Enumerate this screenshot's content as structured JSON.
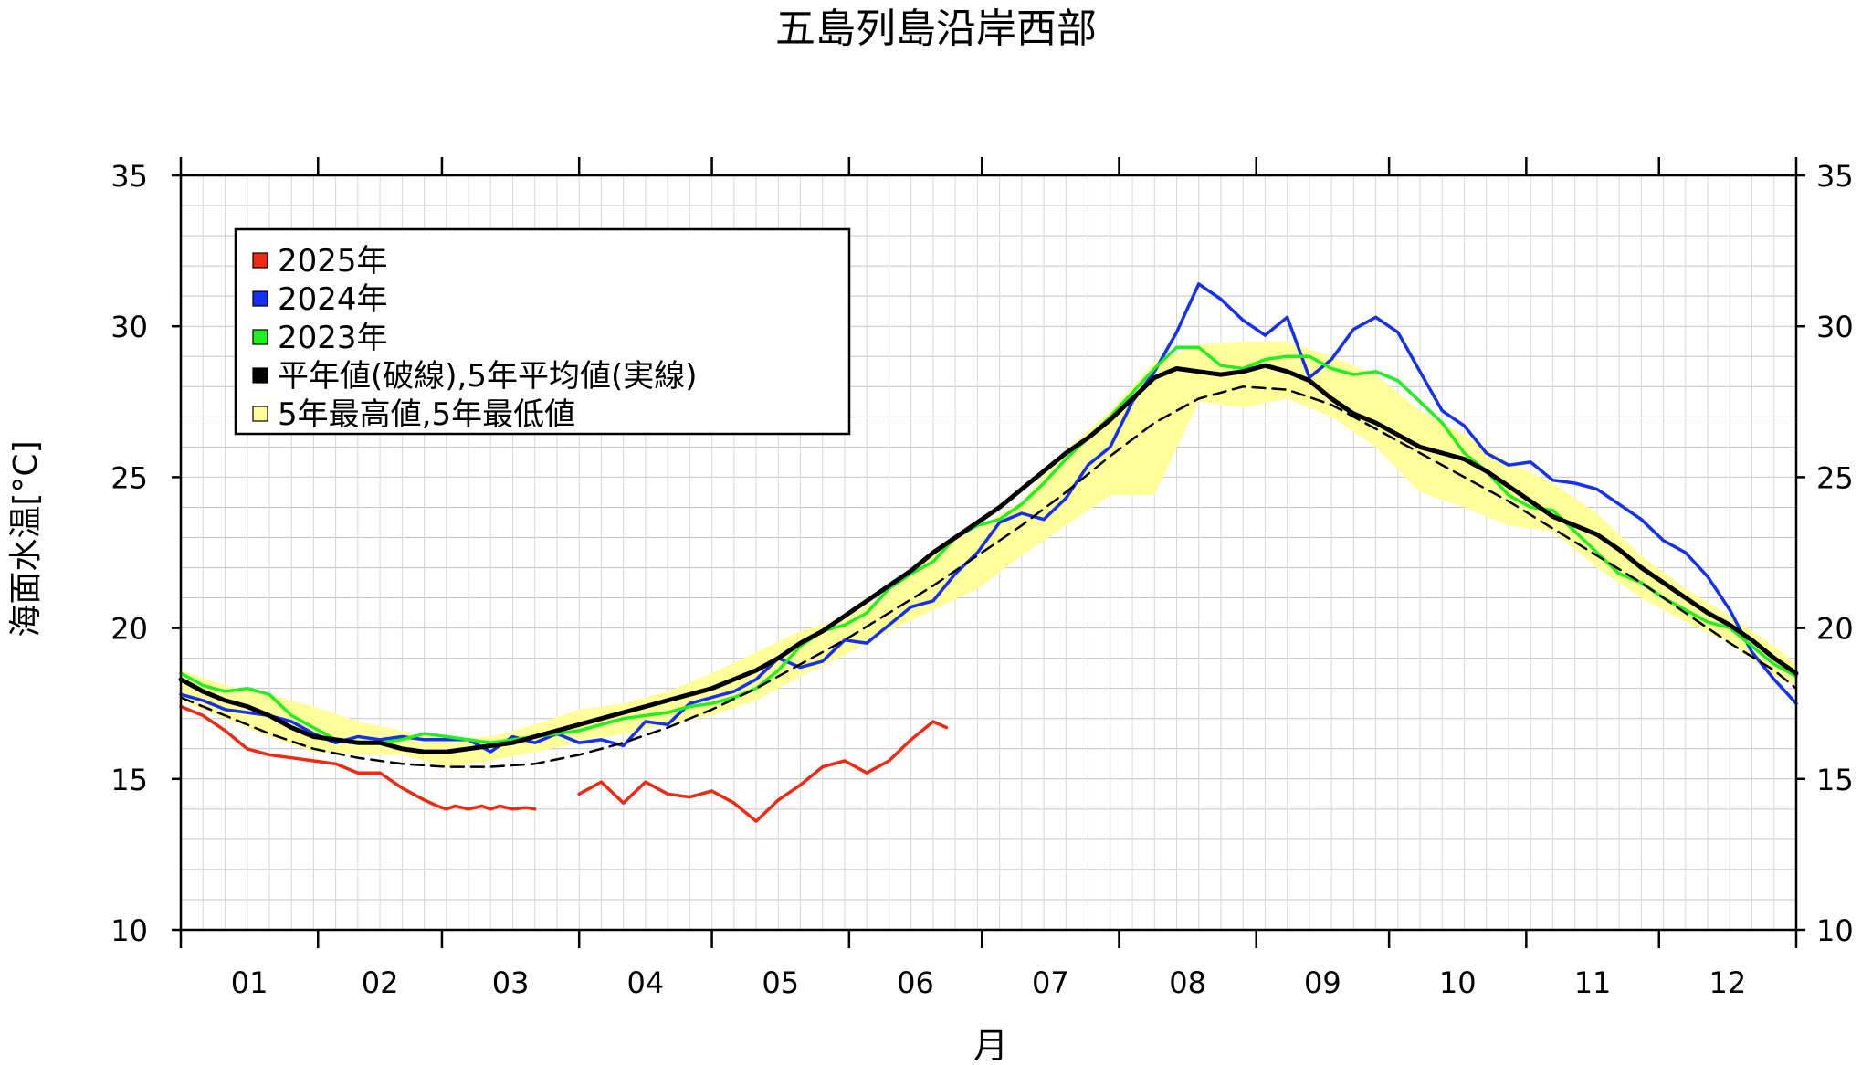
{
  "title": "五島列島沿岸西部",
  "chart_data": {
    "type": "line",
    "title": "五島列島沿岸西部",
    "xlabel": "月",
    "ylabel": "海面水温[°C]",
    "xlim": [
      0,
      365
    ],
    "ylim": [
      10,
      35
    ],
    "grid": true,
    "legend_position": "top-left",
    "x_tick_labels": [
      "01",
      "02",
      "03",
      "04",
      "05",
      "06",
      "07",
      "08",
      "09",
      "10",
      "11",
      "12"
    ],
    "y_ticks": [
      10,
      15,
      20,
      25,
      30,
      35
    ],
    "y_tick_labels": [
      "10",
      "15",
      "20",
      "25",
      "30",
      "35"
    ],
    "legend": [
      {
        "label": "2025年",
        "color": "#ee2a12",
        "swatch": "red-swatch"
      },
      {
        "label": "2024年",
        "color": "#1530ee",
        "swatch": "blue-swatch"
      },
      {
        "label": "2023年",
        "color": "#22ee22",
        "swatch": "green-swatch"
      },
      {
        "label": "平年値(破線),5年平均値(実線)",
        "color": "#000000",
        "swatch": "black-swatch"
      },
      {
        "label": "5年最高値,5年最低値",
        "color": "#ffff99",
        "swatch": "yellow-swatch"
      }
    ],
    "series": [
      {
        "name": "2025年",
        "color": "#ee2a12",
        "style": "solid",
        "x": [
          0,
          5,
          10,
          15,
          20,
          25,
          30,
          35,
          40,
          45,
          50,
          55,
          58,
          60,
          62,
          65,
          68,
          70,
          72,
          75,
          78,
          80,
          85,
          90,
          95,
          100,
          105,
          110,
          115,
          120,
          125,
          130,
          135,
          140,
          145,
          150,
          155,
          160,
          165,
          170,
          173
        ],
        "y": [
          17.4,
          17.1,
          16.6,
          16.0,
          15.8,
          15.7,
          15.6,
          15.5,
          15.2,
          15.2,
          14.7,
          14.3,
          14.1,
          14.0,
          14.1,
          14.0,
          14.1,
          14.0,
          14.1,
          14.0,
          14.05,
          14.0,
          null,
          14.5,
          14.9,
          14.2,
          14.9,
          14.5,
          14.4,
          14.6,
          14.2,
          13.6,
          14.3,
          14.8,
          15.4,
          15.6,
          15.2,
          15.6,
          16.3,
          16.9,
          16.7
        ]
      },
      {
        "name": "2024年",
        "color": "#1530ee",
        "style": "solid",
        "x": [
          0,
          5,
          10,
          15,
          20,
          25,
          30,
          35,
          40,
          45,
          50,
          55,
          60,
          65,
          70,
          75,
          80,
          85,
          90,
          95,
          100,
          105,
          110,
          115,
          120,
          125,
          130,
          135,
          140,
          145,
          150,
          155,
          160,
          165,
          170,
          175,
          180,
          185,
          190,
          195,
          200,
          205,
          210,
          215,
          220,
          225,
          230,
          235,
          240,
          245,
          250,
          255,
          260,
          265,
          270,
          275,
          280,
          285,
          290,
          295,
          300,
          305,
          310,
          315,
          320,
          325,
          330,
          335,
          340,
          345,
          350,
          355,
          360,
          365
        ],
        "y": [
          17.8,
          17.6,
          17.3,
          17.2,
          17.1,
          16.9,
          16.5,
          16.2,
          16.4,
          16.3,
          16.4,
          16.3,
          16.3,
          16.3,
          15.9,
          16.4,
          16.2,
          16.5,
          16.2,
          16.3,
          16.1,
          16.9,
          16.8,
          17.5,
          17.7,
          17.9,
          18.3,
          19.0,
          18.7,
          18.9,
          19.6,
          19.5,
          20.1,
          20.7,
          20.9,
          21.8,
          22.5,
          23.5,
          23.8,
          23.6,
          24.3,
          25.4,
          26.0,
          27.5,
          28.5,
          29.8,
          31.4,
          30.9,
          30.2,
          29.7,
          30.3,
          28.3,
          28.9,
          29.9,
          30.3,
          29.8,
          28.5,
          27.2,
          26.7,
          25.8,
          25.4,
          25.5,
          24.9,
          24.8,
          24.6,
          24.1,
          23.6,
          22.9,
          22.5,
          21.7,
          20.6,
          19.2,
          18.3,
          17.5
        ]
      },
      {
        "name": "2023年",
        "color": "#22ee22",
        "style": "solid",
        "x": [
          0,
          5,
          10,
          15,
          20,
          25,
          30,
          35,
          40,
          45,
          50,
          55,
          60,
          65,
          70,
          75,
          80,
          85,
          90,
          95,
          100,
          105,
          110,
          115,
          120,
          125,
          130,
          135,
          140,
          145,
          150,
          155,
          160,
          165,
          170,
          175,
          180,
          185,
          190,
          195,
          200,
          205,
          210,
          215,
          220,
          225,
          230,
          235,
          240,
          245,
          250,
          255,
          260,
          265,
          270,
          275,
          280,
          285,
          290,
          295,
          300,
          305,
          310,
          315,
          320,
          325,
          330,
          335,
          340,
          345,
          350,
          355,
          360,
          365
        ],
        "y": [
          18.5,
          18.1,
          17.9,
          18.0,
          17.8,
          17.1,
          16.7,
          16.3,
          16.2,
          16.2,
          16.3,
          16.5,
          16.4,
          16.3,
          16.2,
          16.3,
          16.4,
          16.5,
          16.6,
          16.8,
          17.0,
          17.1,
          17.2,
          17.4,
          17.5,
          17.7,
          18.0,
          18.6,
          19.4,
          19.9,
          20.1,
          20.5,
          21.3,
          21.8,
          22.2,
          23.0,
          23.4,
          23.6,
          24.1,
          24.8,
          25.6,
          26.3,
          27.0,
          27.8,
          28.6,
          29.3,
          29.3,
          28.7,
          28.6,
          28.9,
          29.0,
          29.0,
          28.6,
          28.4,
          28.5,
          28.2,
          27.5,
          26.8,
          25.8,
          25.2,
          24.4,
          24.0,
          23.9,
          23.2,
          22.5,
          21.8,
          21.5,
          21.0,
          20.6,
          20.2,
          20.0,
          19.4,
          18.8,
          18.4
        ]
      },
      {
        "name": "5年平均値",
        "color": "#000000",
        "style": "solid",
        "x": [
          0,
          5,
          10,
          15,
          20,
          25,
          30,
          35,
          40,
          45,
          50,
          55,
          60,
          65,
          70,
          75,
          80,
          85,
          90,
          95,
          100,
          105,
          110,
          115,
          120,
          125,
          130,
          135,
          140,
          145,
          150,
          155,
          160,
          165,
          170,
          175,
          180,
          185,
          190,
          195,
          200,
          205,
          210,
          215,
          220,
          225,
          230,
          235,
          240,
          245,
          250,
          255,
          260,
          265,
          270,
          275,
          280,
          285,
          290,
          295,
          300,
          305,
          310,
          315,
          320,
          325,
          330,
          335,
          340,
          345,
          350,
          355,
          360,
          365
        ],
        "y": [
          18.3,
          17.9,
          17.6,
          17.4,
          17.1,
          16.7,
          16.4,
          16.3,
          16.2,
          16.2,
          16.0,
          15.9,
          15.9,
          16.0,
          16.1,
          16.2,
          16.4,
          16.6,
          16.8,
          17.0,
          17.2,
          17.4,
          17.6,
          17.8,
          18.0,
          18.3,
          18.6,
          19.0,
          19.5,
          19.9,
          20.4,
          20.9,
          21.4,
          21.9,
          22.5,
          23.0,
          23.5,
          24.0,
          24.6,
          25.2,
          25.8,
          26.3,
          26.9,
          27.6,
          28.3,
          28.6,
          28.5,
          28.4,
          28.5,
          28.7,
          28.5,
          28.2,
          27.6,
          27.1,
          26.8,
          26.4,
          26.0,
          25.8,
          25.6,
          25.2,
          24.7,
          24.2,
          23.7,
          23.4,
          23.1,
          22.6,
          22.0,
          21.5,
          21.0,
          20.5,
          20.1,
          19.6,
          19.0,
          18.5
        ]
      },
      {
        "name": "平年値",
        "color": "#000000",
        "style": "dashed",
        "x": [
          0,
          10,
          20,
          30,
          40,
          50,
          60,
          70,
          80,
          90,
          100,
          110,
          120,
          130,
          140,
          150,
          160,
          170,
          180,
          190,
          200,
          210,
          220,
          230,
          240,
          250,
          260,
          270,
          280,
          290,
          300,
          310,
          320,
          330,
          340,
          350,
          360,
          365
        ],
        "y": [
          17.7,
          17.1,
          16.5,
          16.0,
          15.7,
          15.5,
          15.4,
          15.4,
          15.5,
          15.8,
          16.2,
          16.7,
          17.3,
          18.0,
          18.8,
          19.6,
          20.5,
          21.4,
          22.4,
          23.4,
          24.5,
          25.7,
          26.8,
          27.6,
          28.0,
          27.9,
          27.4,
          26.6,
          25.8,
          25.0,
          24.2,
          23.3,
          22.4,
          21.5,
          20.5,
          19.5,
          18.6,
          18.0
        ]
      }
    ],
    "band": {
      "name": "5年最高値,5年最低値",
      "color": "#ffff99",
      "x": [
        0,
        10,
        20,
        30,
        40,
        50,
        60,
        70,
        80,
        90,
        100,
        110,
        120,
        130,
        140,
        150,
        160,
        170,
        180,
        190,
        200,
        210,
        220,
        230,
        240,
        250,
        260,
        270,
        280,
        290,
        300,
        310,
        320,
        330,
        340,
        350,
        360,
        365
      ],
      "upper": [
        18.6,
        18.1,
        17.8,
        17.4,
        16.9,
        16.6,
        16.3,
        16.4,
        16.8,
        17.3,
        17.5,
        17.9,
        18.5,
        19.2,
        19.9,
        20.3,
        21.2,
        22.5,
        23.3,
        24.2,
        25.9,
        27.2,
        28.8,
        29.4,
        29.5,
        29.5,
        29.0,
        28.4,
        27.2,
        26.4,
        25.5,
        24.8,
        23.8,
        22.4,
        21.3,
        20.4,
        19.4,
        18.8
      ],
      "lower": [
        17.6,
        17.0,
        16.4,
        15.9,
        15.8,
        15.8,
        15.4,
        15.6,
        15.9,
        16.2,
        16.5,
        16.8,
        17.1,
        17.6,
        18.4,
        19.1,
        19.9,
        20.6,
        21.3,
        22.4,
        23.4,
        24.4,
        24.4,
        27.5,
        27.3,
        27.6,
        27.0,
        26.0,
        24.5,
        24.0,
        23.4,
        23.2,
        22.0,
        21.0,
        20.2,
        19.5,
        18.4,
        18.1
      ]
    }
  }
}
